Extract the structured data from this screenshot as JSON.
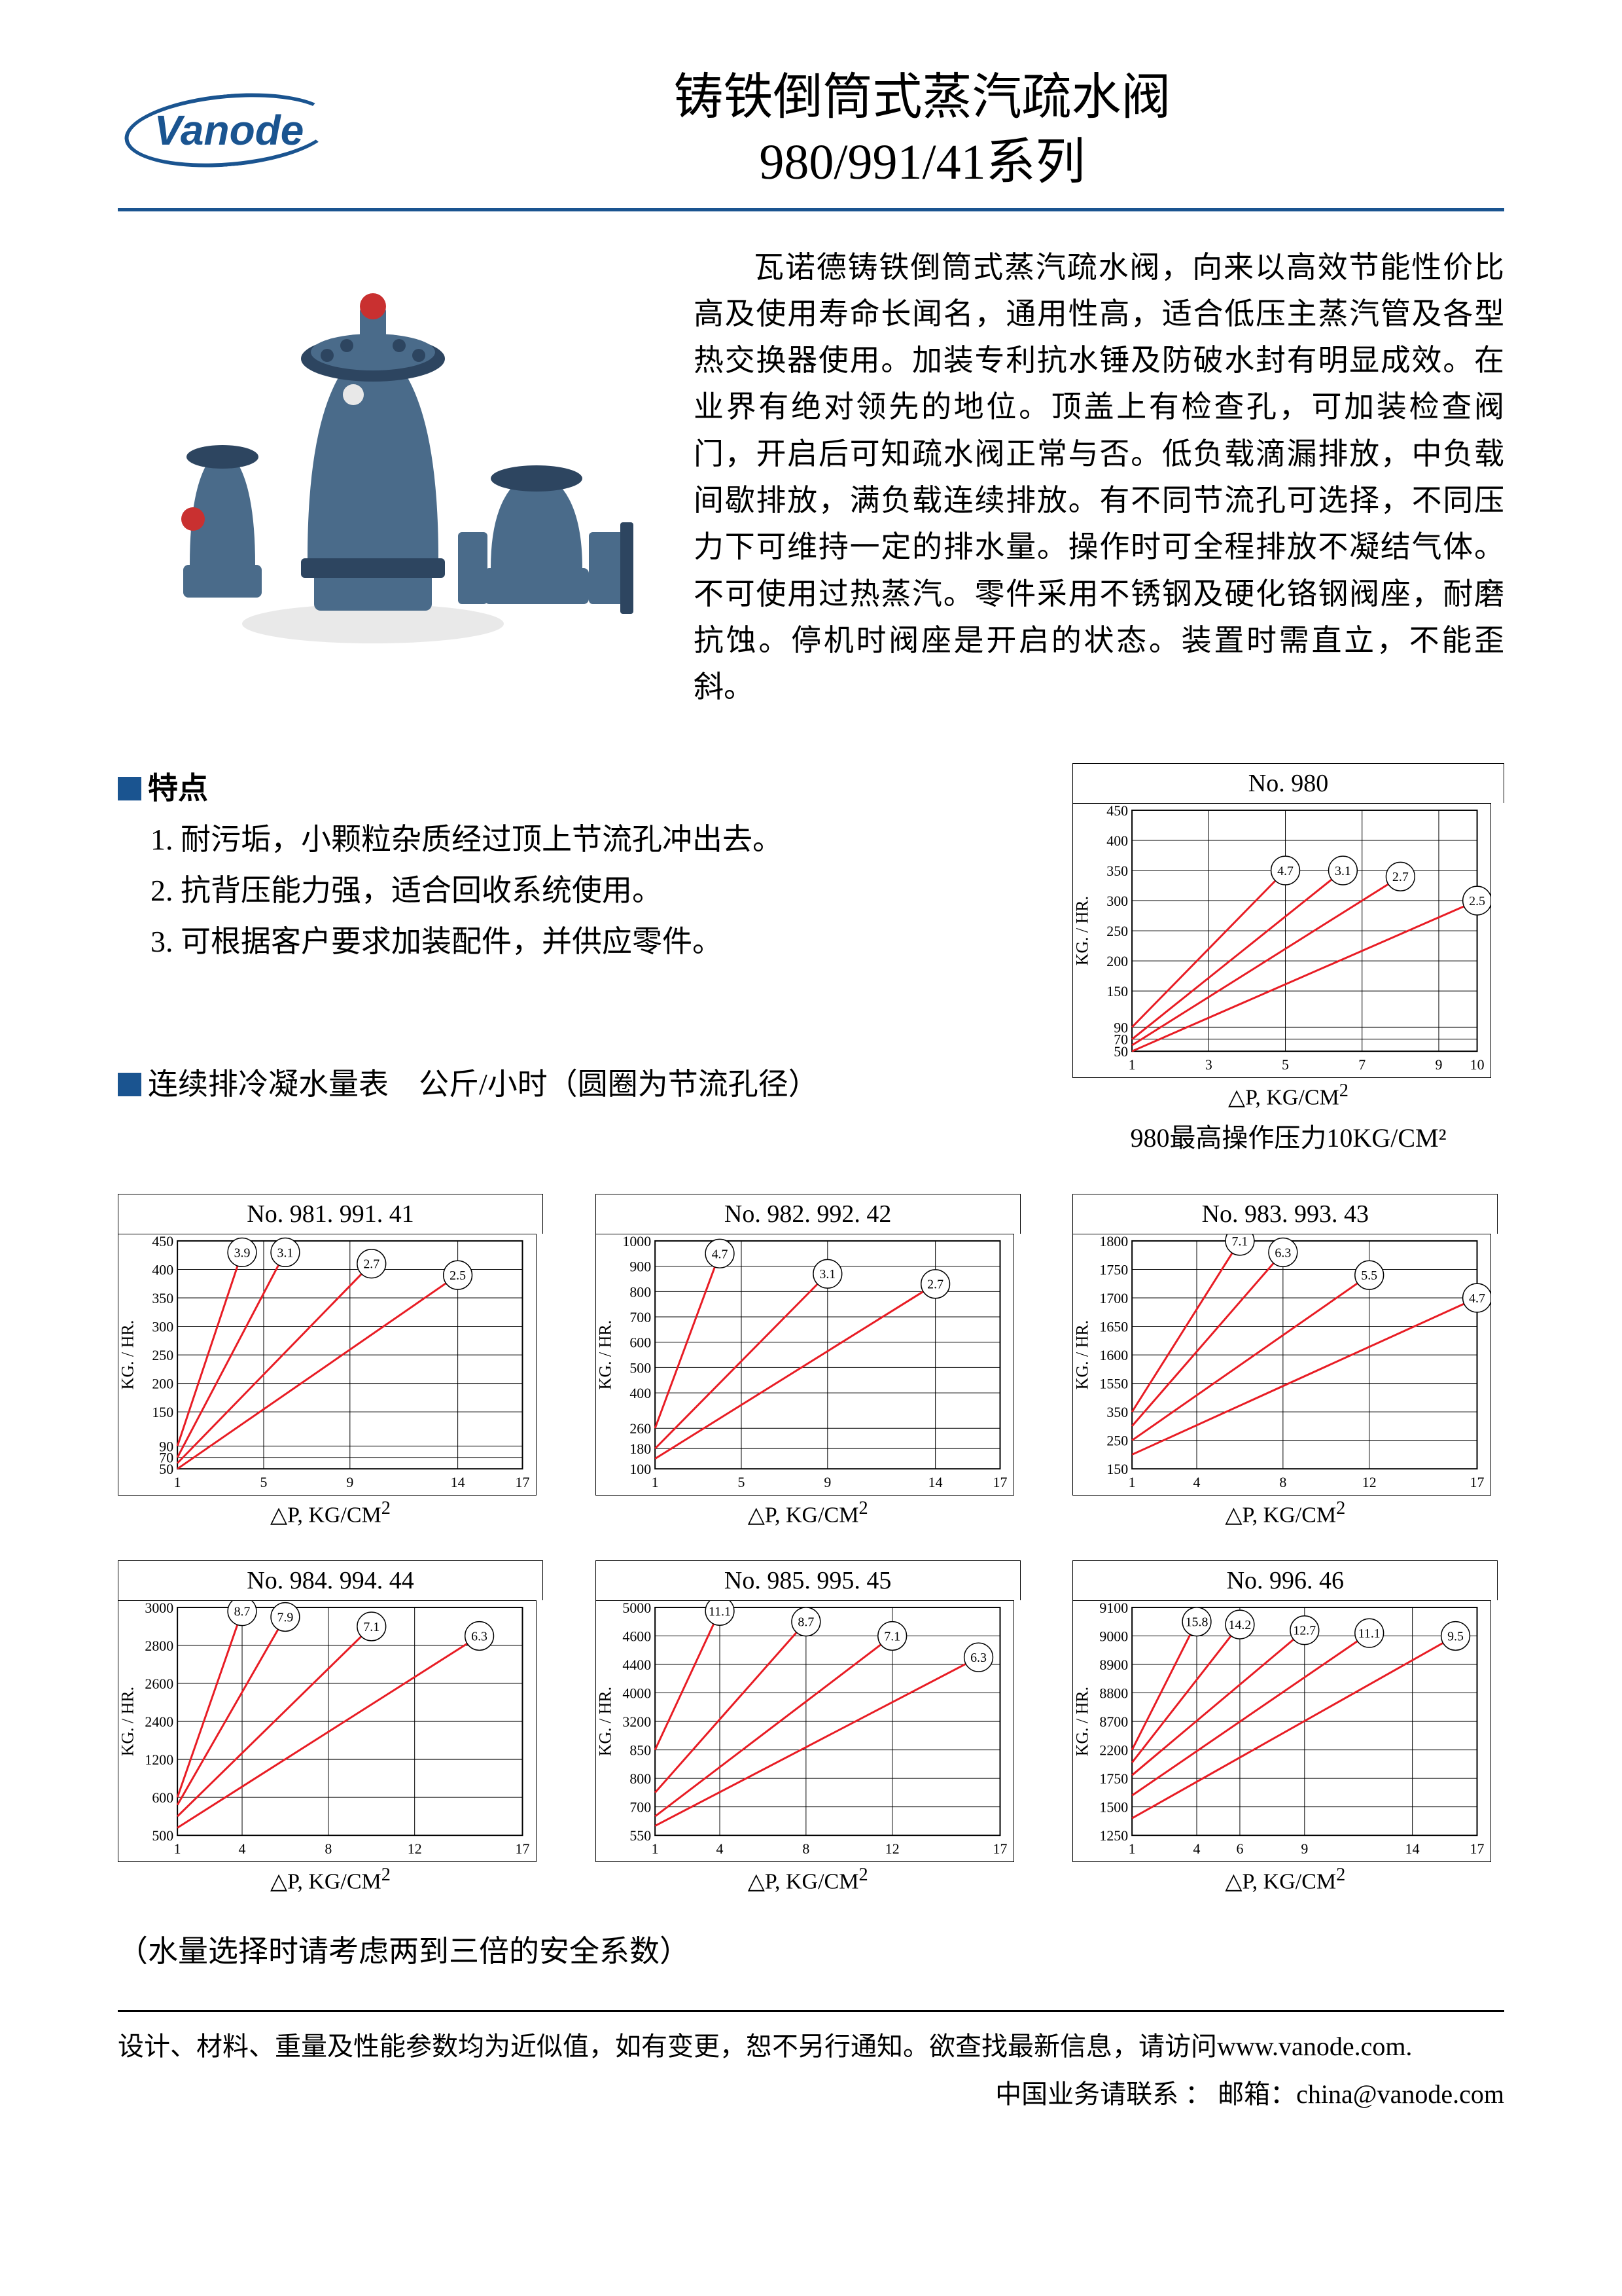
{
  "brand": "Vanode",
  "title_line1": "铸铁倒筒式蒸汽疏水阀",
  "title_line2": "980/991/41系列",
  "intro": "瓦诺德铸铁倒筒式蒸汽疏水阀，向来以高效节能性价比高及使用寿命长闻名，通用性高，适合低压主蒸汽管及各型热交换器使用。加装专利抗水锤及防破水封有明显成效。在业界有绝对领先的地位。顶盖上有检查孔，可加装检查阀门，开启后可知疏水阀正常与否。低负载滴漏排放，中负载间歇排放，满负载连续排放。有不同节流孔可选择，不同压力下可维持一定的排水量。操作时可全程排放不凝结气体。不可使用过热蒸汽。零件采用不锈钢及硬化铬钢阀座，耐磨抗蚀。停机时阀座是开启的状态。装置时需直立，不能歪斜。",
  "features_title": "特点",
  "features": [
    "1. 耐污垢，小颗粒杂质经过顶上节流孔冲出去。",
    "2. 抗背压能力强，适合回收系统使用。",
    "3. 可根据客户要求加装配件，并供应零件。"
  ],
  "capacity_label": "连续排冷凝水量表　公斤/小时（圆圈为节流孔径）",
  "colors": {
    "accent": "#1a5490",
    "line": "#e81c24",
    "grid": "#000000",
    "bg": "#ffffff",
    "valve_body": "#4a6b8a",
    "valve_dark": "#2d4560"
  },
  "axis": {
    "ylabel": "KG. / HR.",
    "xlabel_prefix": "△P,  KG/CM",
    "xlabel_sup": "2"
  },
  "chart_980": {
    "title": "No. 980",
    "xticks": [
      1,
      3,
      5,
      7,
      9,
      10
    ],
    "yticks": [
      50,
      70,
      90,
      150,
      200,
      250,
      300,
      350,
      400,
      450
    ],
    "series": [
      {
        "label": "4.7",
        "x1": 1,
        "y1": 90,
        "x2": 5,
        "y2": 350
      },
      {
        "label": "3.1",
        "x1": 1,
        "y1": 70,
        "x2": 6.5,
        "y2": 350
      },
      {
        "label": "2.7",
        "x1": 1,
        "y1": 60,
        "x2": 8,
        "y2": 340
      },
      {
        "label": "2.5",
        "x1": 1,
        "y1": 50,
        "x2": 10,
        "y2": 300
      }
    ],
    "caption": "980最高操作压力10KG/CM²"
  },
  "charts": [
    {
      "title": "No. 981. 991. 41",
      "xticks": [
        1,
        5,
        9,
        14,
        17
      ],
      "yticks": [
        50,
        70,
        90,
        150,
        200,
        250,
        300,
        350,
        400,
        450
      ],
      "series": [
        {
          "label": "3.9",
          "x1": 1,
          "y1": 90,
          "x2": 4,
          "y2": 430
        },
        {
          "label": "3.1",
          "x1": 1,
          "y1": 70,
          "x2": 6,
          "y2": 430
        },
        {
          "label": "2.7",
          "x1": 1,
          "y1": 60,
          "x2": 10,
          "y2": 410
        },
        {
          "label": "2.5",
          "x1": 1,
          "y1": 50,
          "x2": 14,
          "y2": 390
        }
      ]
    },
    {
      "title": "No. 982. 992. 42",
      "xticks": [
        1,
        5,
        9,
        14,
        17
      ],
      "yticks": [
        100,
        180,
        260,
        400,
        500,
        600,
        700,
        800,
        900,
        1000
      ],
      "series": [
        {
          "label": "4.7",
          "x1": 1,
          "y1": 260,
          "x2": 4,
          "y2": 950
        },
        {
          "label": "3.1",
          "x1": 1,
          "y1": 180,
          "x2": 9,
          "y2": 870
        },
        {
          "label": "2.7",
          "x1": 1,
          "y1": 140,
          "x2": 14,
          "y2": 830
        }
      ]
    },
    {
      "title": "No. 983. 993. 43",
      "xticks": [
        1,
        4,
        8,
        12,
        17
      ],
      "yticks": [
        150,
        250,
        350,
        1550,
        1600,
        1650,
        1700,
        1750,
        1800
      ],
      "ybreak": true,
      "series": [
        {
          "label": "7.1",
          "x1": 1,
          "y1": 350,
          "x2": 6,
          "y2": 1800
        },
        {
          "label": "6.3",
          "x1": 1,
          "y1": 300,
          "x2": 8,
          "y2": 1780
        },
        {
          "label": "5.5",
          "x1": 1,
          "y1": 250,
          "x2": 12,
          "y2": 1740
        },
        {
          "label": "4.7",
          "x1": 1,
          "y1": 200,
          "x2": 17,
          "y2": 1700
        }
      ]
    },
    {
      "title": "No. 984. 994. 44",
      "xticks": [
        1,
        4,
        8,
        12,
        17
      ],
      "yticks": [
        500,
        600,
        1200,
        2400,
        2600,
        2800,
        3000
      ],
      "ybreak": true,
      "series": [
        {
          "label": "8.7",
          "x1": 1,
          "y1": 600,
          "x2": 4,
          "y2": 2980
        },
        {
          "label": "7.9",
          "x1": 1,
          "y1": 580,
          "x2": 6,
          "y2": 2950
        },
        {
          "label": "7.1",
          "x1": 1,
          "y1": 550,
          "x2": 10,
          "y2": 2900
        },
        {
          "label": "6.3",
          "x1": 1,
          "y1": 520,
          "x2": 15,
          "y2": 2850
        }
      ]
    },
    {
      "title": "No. 985. 995. 45",
      "xticks": [
        1,
        4,
        8,
        12,
        17
      ],
      "yticks": [
        550,
        700,
        800,
        850,
        3200,
        4000,
        4400,
        4600,
        5000
      ],
      "ybreak": true,
      "series": [
        {
          "label": "11.1",
          "x1": 1,
          "y1": 850,
          "x2": 4,
          "y2": 4950
        },
        {
          "label": "8.7",
          "x1": 1,
          "y1": 750,
          "x2": 8,
          "y2": 4800
        },
        {
          "label": "7.1",
          "x1": 1,
          "y1": 650,
          "x2": 12,
          "y2": 4600
        },
        {
          "label": "6.3",
          "x1": 1,
          "y1": 600,
          "x2": 16,
          "y2": 4450
        }
      ]
    },
    {
      "title": "No. 996. 46",
      "xticks": [
        1,
        4,
        6,
        9,
        14,
        17
      ],
      "yticks": [
        1250,
        1500,
        1750,
        2200,
        8700,
        8800,
        8900,
        9000,
        9100
      ],
      "ybreak": true,
      "series": [
        {
          "label": "15.8",
          "x1": 1,
          "y1": 2200,
          "x2": 4,
          "y2": 9050
        },
        {
          "label": "14.2",
          "x1": 1,
          "y1": 2000,
          "x2": 6,
          "y2": 9040
        },
        {
          "label": "12.7",
          "x1": 1,
          "y1": 1800,
          "x2": 9,
          "y2": 9020
        },
        {
          "label": "11.1",
          "x1": 1,
          "y1": 1600,
          "x2": 12,
          "y2": 9010
        },
        {
          "label": "9.5",
          "x1": 1,
          "y1": 1400,
          "x2": 16,
          "y2": 9000
        }
      ]
    }
  ],
  "safety_note": "（水量选择时请考虑两到三倍的安全系数）",
  "footer_disclaimer": "设计、材料、重量及性能参数均为近似值，如有变更，恕不另行通知。欲查找最新信息，请访问www.vanode.com.",
  "footer_contact": "中国业务请联系 ： 邮箱：china@vanode.com"
}
